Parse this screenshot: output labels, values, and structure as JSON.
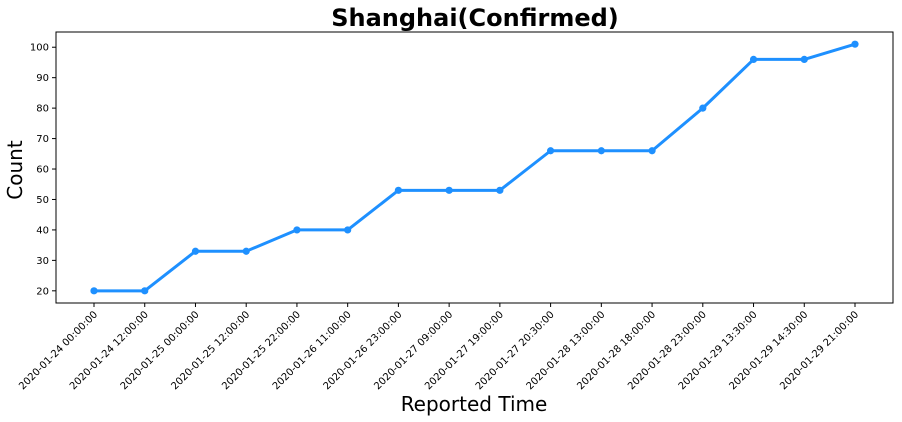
{
  "chart_data": {
    "type": "line",
    "title": "Shanghai(Confirmed)",
    "xlabel": "Reported Time",
    "ylabel": "Count",
    "categories": [
      "2020-01-24 00:00:00",
      "2020-01-24 12:00:00",
      "2020-01-25 00:00:00",
      "2020-01-25 12:00:00",
      "2020-01-25 22:00:00",
      "2020-01-26 11:00:00",
      "2020-01-26 23:00:00",
      "2020-01-27 09:00:00",
      "2020-01-27 19:00:00",
      "2020-01-27 20:30:00",
      "2020-01-28 13:00:00",
      "2020-01-28 18:00:00",
      "2020-01-28 23:00:00",
      "2020-01-29 13:30:00",
      "2020-01-29 14:30:00",
      "2020-01-29 21:00:00"
    ],
    "values": [
      20,
      20,
      33,
      33,
      40,
      40,
      53,
      53,
      53,
      66,
      66,
      66,
      80,
      96,
      96,
      101
    ],
    "yticks": [
      20,
      30,
      40,
      50,
      60,
      70,
      80,
      90,
      100
    ],
    "ylim": [
      16,
      105
    ],
    "grid": false,
    "line_color": "#1e90ff"
  }
}
